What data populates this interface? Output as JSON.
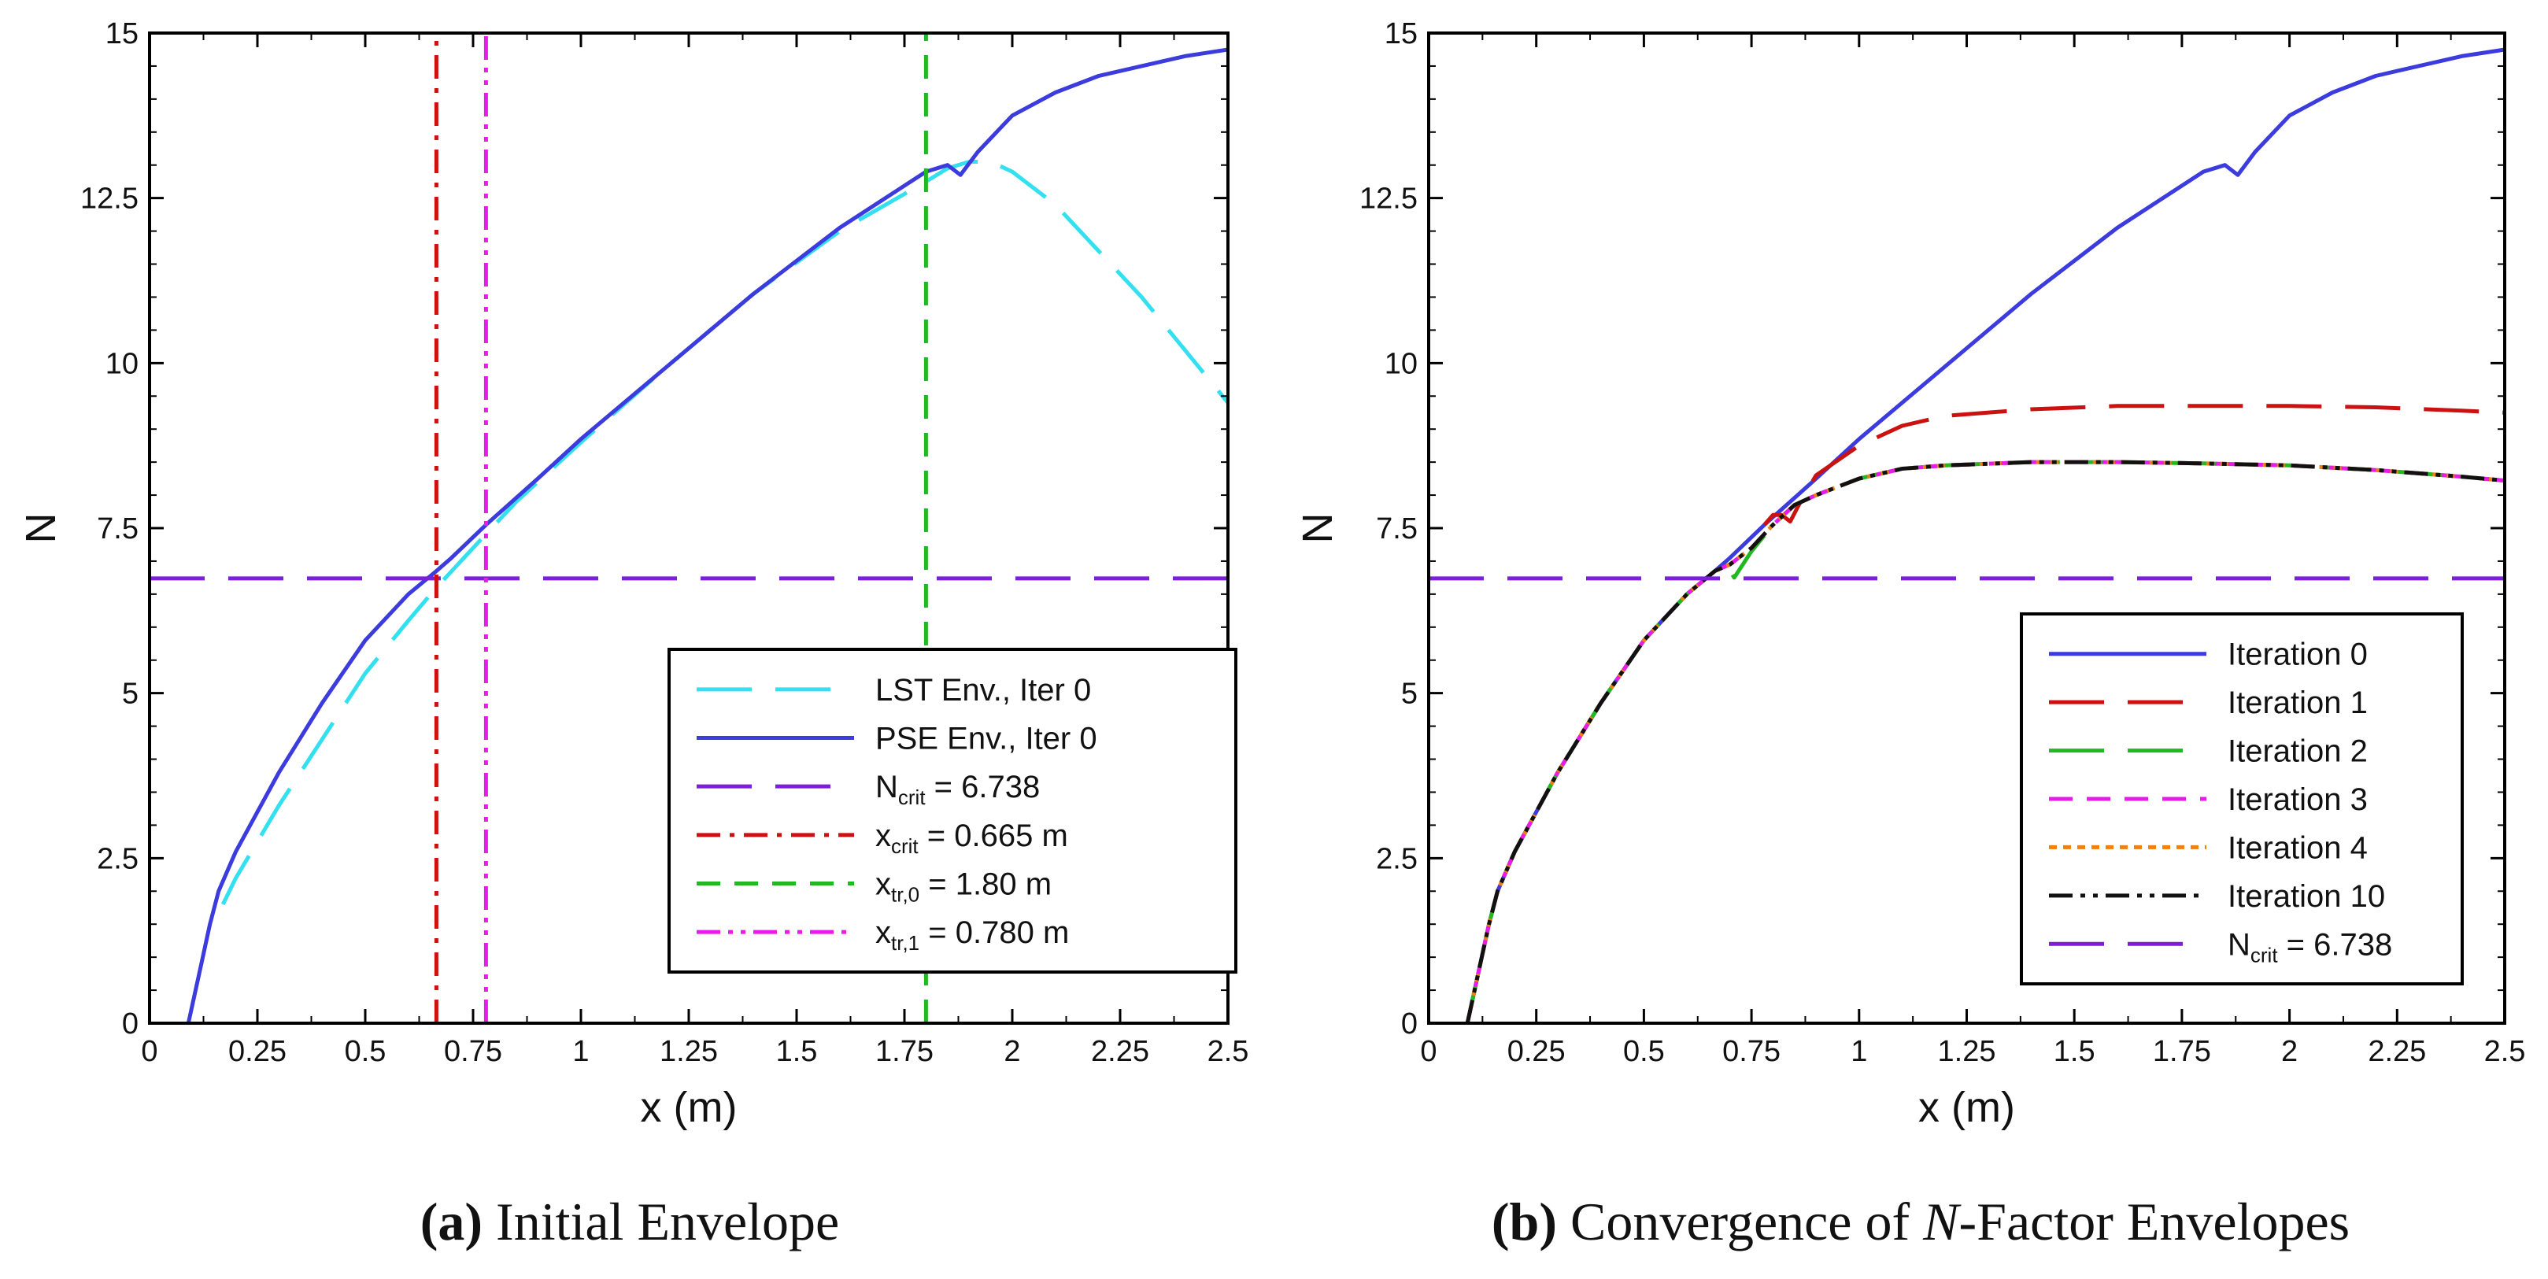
{
  "chart_data": [
    {
      "type": "line",
      "panel": "a",
      "xlabel": "x (m)",
      "ylabel": "N",
      "xlim": [
        0,
        2.5
      ],
      "ylim": [
        0,
        15
      ],
      "xticks": [
        "0",
        "0.25",
        "0.5",
        "0.75",
        "1",
        "1.25",
        "1.5",
        "1.75",
        "2",
        "2.25",
        "2.5"
      ],
      "yticks": [
        "0",
        "2.5",
        "5",
        "7.5",
        "10",
        "12.5",
        "15"
      ],
      "series": [
        {
          "name": "LST Env., Iter 0",
          "label_main": "LST Env., Iter 0",
          "label_sub": "",
          "label_tail": "",
          "color": "#33e0f0",
          "style": "longdash",
          "x": [
            0.17,
            0.2,
            0.25,
            0.3,
            0.4,
            0.5,
            0.6,
            0.665,
            0.75,
            0.85,
            1.0,
            1.2,
            1.4,
            1.6,
            1.8,
            1.85,
            1.9,
            1.95,
            2.0,
            2.1,
            2.2,
            2.3,
            2.4,
            2.5
          ],
          "y": [
            1.8,
            2.2,
            2.75,
            3.3,
            4.3,
            5.3,
            6.1,
            6.6,
            7.2,
            7.9,
            8.8,
            9.95,
            11.05,
            12.0,
            12.75,
            12.95,
            13.05,
            13.05,
            12.9,
            12.4,
            11.7,
            11.0,
            10.2,
            9.4
          ]
        },
        {
          "name": "PSE Env., Iter 0",
          "label_main": "PSE Env., Iter 0",
          "label_sub": "",
          "label_tail": "",
          "color": "#3b3bde",
          "style": "solid",
          "x": [
            0.09,
            0.1,
            0.12,
            0.14,
            0.16,
            0.18,
            0.2,
            0.25,
            0.3,
            0.4,
            0.5,
            0.6,
            0.665,
            0.7,
            0.78,
            0.9,
            1.0,
            1.2,
            1.4,
            1.6,
            1.8,
            1.85,
            1.88,
            1.92,
            2.0,
            2.1,
            2.2,
            2.3,
            2.4,
            2.5
          ],
          "y": [
            0.0,
            0.3,
            0.9,
            1.5,
            2.0,
            2.3,
            2.6,
            3.2,
            3.8,
            4.85,
            5.8,
            6.5,
            6.85,
            7.05,
            7.55,
            8.25,
            8.85,
            9.95,
            11.05,
            12.05,
            12.9,
            13.0,
            12.85,
            13.2,
            13.75,
            14.1,
            14.35,
            14.5,
            14.65,
            14.75
          ]
        },
        {
          "name": "N_crit = 6.738",
          "label_main": "N",
          "label_sub": "crit",
          "label_tail": " = 6.738",
          "color": "#7b1fd8",
          "style": "longdash",
          "x": [
            0,
            2.5
          ],
          "y": [
            6.738,
            6.738
          ]
        },
        {
          "name": "x_crit = 0.665 m",
          "label_main": "x",
          "label_sub": "crit",
          "label_tail": " = 0.665 m",
          "color": "#cc1111",
          "style": "dashdot",
          "x": [
            0.665,
            0.665
          ],
          "y": [
            0,
            15
          ]
        },
        {
          "name": "x_tr,0 = 1.80 m",
          "label_main": "x",
          "label_sub": "tr,0",
          "label_tail": " = 1.80 m",
          "color": "#22b822",
          "style": "dash",
          "x": [
            1.8,
            1.8
          ],
          "y": [
            0,
            15
          ]
        },
        {
          "name": "x_tr,1 = 0.780 m",
          "label_main": "x",
          "label_sub": "tr,1",
          "label_tail": " = 0.780 m",
          "color": "#e81be8",
          "style": "dashdotdot",
          "x": [
            0.78,
            0.78
          ],
          "y": [
            0,
            15
          ]
        }
      ],
      "legend_position": "bottom-right"
    },
    {
      "type": "line",
      "panel": "b",
      "xlabel": "x (m)",
      "ylabel": "N",
      "xlim": [
        0,
        2.5
      ],
      "ylim": [
        0,
        15
      ],
      "xticks": [
        "0",
        "0.25",
        "0.5",
        "0.75",
        "1",
        "1.25",
        "1.5",
        "1.75",
        "2",
        "2.25",
        "2.5"
      ],
      "yticks": [
        "0",
        "2.5",
        "5",
        "7.5",
        "10",
        "12.5",
        "15"
      ],
      "series": [
        {
          "name": "Iteration 0",
          "label_main": "Iteration 0",
          "label_sub": "",
          "label_tail": "",
          "color": "#3b3bde",
          "style": "solid",
          "x": [
            0.09,
            0.1,
            0.12,
            0.14,
            0.16,
            0.18,
            0.2,
            0.25,
            0.3,
            0.4,
            0.5,
            0.6,
            0.665,
            0.7,
            0.78,
            0.9,
            1.0,
            1.2,
            1.4,
            1.6,
            1.8,
            1.85,
            1.88,
            1.92,
            2.0,
            2.1,
            2.2,
            2.3,
            2.4,
            2.5
          ],
          "y": [
            0.0,
            0.3,
            0.9,
            1.5,
            2.0,
            2.3,
            2.6,
            3.2,
            3.8,
            4.85,
            5.8,
            6.5,
            6.85,
            7.05,
            7.55,
            8.25,
            8.85,
            9.95,
            11.05,
            12.05,
            12.9,
            13.0,
            12.85,
            13.2,
            13.75,
            14.1,
            14.35,
            14.5,
            14.65,
            14.75
          ]
        },
        {
          "name": "Iteration 1",
          "label_main": "Iteration 1",
          "label_sub": "",
          "label_tail": "",
          "color": "#cc1111",
          "style": "longdash",
          "x": [
            0.78,
            0.8,
            0.82,
            0.84,
            0.86,
            0.9,
            1.0,
            1.1,
            1.2,
            1.4,
            1.6,
            1.8,
            2.0,
            2.2,
            2.4,
            2.5
          ],
          "y": [
            7.55,
            7.7,
            7.7,
            7.6,
            7.85,
            8.3,
            8.75,
            9.05,
            9.2,
            9.3,
            9.35,
            9.35,
            9.35,
            9.33,
            9.28,
            9.25
          ]
        },
        {
          "name": "Iteration 2",
          "label_main": "Iteration 2",
          "label_sub": "",
          "label_tail": "",
          "color": "#22b822",
          "style": "longdash",
          "x": [
            0.09,
            0.1,
            0.12,
            0.14,
            0.16,
            0.18,
            0.2,
            0.25,
            0.3,
            0.4,
            0.5,
            0.6,
            0.665,
            0.69,
            0.71,
            0.75,
            0.8,
            0.85,
            0.9,
            1.0,
            1.1,
            1.2,
            1.4,
            1.6,
            1.8,
            2.0,
            2.2,
            2.4,
            2.5
          ],
          "y": [
            0.0,
            0.3,
            0.9,
            1.5,
            2.0,
            2.3,
            2.6,
            3.2,
            3.8,
            4.85,
            5.8,
            6.5,
            6.85,
            6.95,
            6.75,
            7.15,
            7.55,
            7.85,
            8.0,
            8.25,
            8.4,
            8.45,
            8.5,
            8.5,
            8.48,
            8.45,
            8.38,
            8.28,
            8.22
          ]
        },
        {
          "name": "Iteration 3",
          "label_main": "Iteration 3",
          "label_sub": "",
          "label_tail": "",
          "color": "#e81be8",
          "style": "dash",
          "x": [
            0.09,
            0.1,
            0.12,
            0.14,
            0.16,
            0.18,
            0.2,
            0.25,
            0.3,
            0.4,
            0.5,
            0.6,
            0.665,
            0.7,
            0.75,
            0.8,
            0.85,
            0.9,
            1.0,
            1.1,
            1.2,
            1.4,
            1.6,
            1.8,
            2.0,
            2.2,
            2.4,
            2.5
          ],
          "y": [
            0.0,
            0.3,
            0.9,
            1.5,
            2.0,
            2.3,
            2.6,
            3.2,
            3.8,
            4.85,
            5.8,
            6.5,
            6.85,
            6.95,
            7.2,
            7.55,
            7.85,
            8.0,
            8.25,
            8.4,
            8.45,
            8.5,
            8.5,
            8.48,
            8.45,
            8.38,
            8.28,
            8.22
          ]
        },
        {
          "name": "Iteration 4",
          "label_main": "Iteration 4",
          "label_sub": "",
          "label_tail": "",
          "color": "#f08010",
          "style": "dot",
          "x": [
            0.09,
            0.1,
            0.12,
            0.14,
            0.16,
            0.18,
            0.2,
            0.25,
            0.3,
            0.4,
            0.5,
            0.6,
            0.665,
            0.7,
            0.75,
            0.8,
            0.85,
            0.9,
            1.0,
            1.1,
            1.2,
            1.4,
            1.6,
            1.8,
            2.0,
            2.2,
            2.4,
            2.5
          ],
          "y": [
            0.0,
            0.3,
            0.9,
            1.5,
            2.0,
            2.3,
            2.6,
            3.2,
            3.8,
            4.85,
            5.8,
            6.5,
            6.85,
            6.95,
            7.2,
            7.55,
            7.85,
            8.0,
            8.25,
            8.4,
            8.45,
            8.5,
            8.5,
            8.48,
            8.45,
            8.38,
            8.28,
            8.22
          ]
        },
        {
          "name": "Iteration 10",
          "label_main": "Iteration 10",
          "label_sub": "",
          "label_tail": "",
          "color": "#111111",
          "style": "dashdotdot",
          "x": [
            0.09,
            0.1,
            0.12,
            0.14,
            0.16,
            0.18,
            0.2,
            0.25,
            0.3,
            0.4,
            0.5,
            0.6,
            0.665,
            0.7,
            0.75,
            0.8,
            0.85,
            0.9,
            1.0,
            1.1,
            1.2,
            1.4,
            1.6,
            1.8,
            2.0,
            2.2,
            2.4,
            2.5
          ],
          "y": [
            0.0,
            0.3,
            0.9,
            1.5,
            2.0,
            2.3,
            2.6,
            3.2,
            3.8,
            4.85,
            5.8,
            6.5,
            6.85,
            6.95,
            7.2,
            7.55,
            7.85,
            8.0,
            8.25,
            8.4,
            8.45,
            8.5,
            8.5,
            8.48,
            8.45,
            8.38,
            8.28,
            8.22
          ]
        },
        {
          "name": "N_crit = 6.738",
          "label_main": "N",
          "label_sub": "crit",
          "label_tail": " = 6.738",
          "color": "#7b1fd8",
          "style": "longdash",
          "x": [
            0,
            2.5
          ],
          "y": [
            6.738,
            6.738
          ]
        }
      ],
      "legend_position": "bottom-right"
    }
  ],
  "captions": {
    "a": {
      "letter": "(a)",
      "text": " Initial Envelope"
    },
    "b": {
      "letter": "(b)",
      "text_before": " Convergence of ",
      "italic": "N",
      "text_after": "-Factor Envelopes"
    }
  }
}
